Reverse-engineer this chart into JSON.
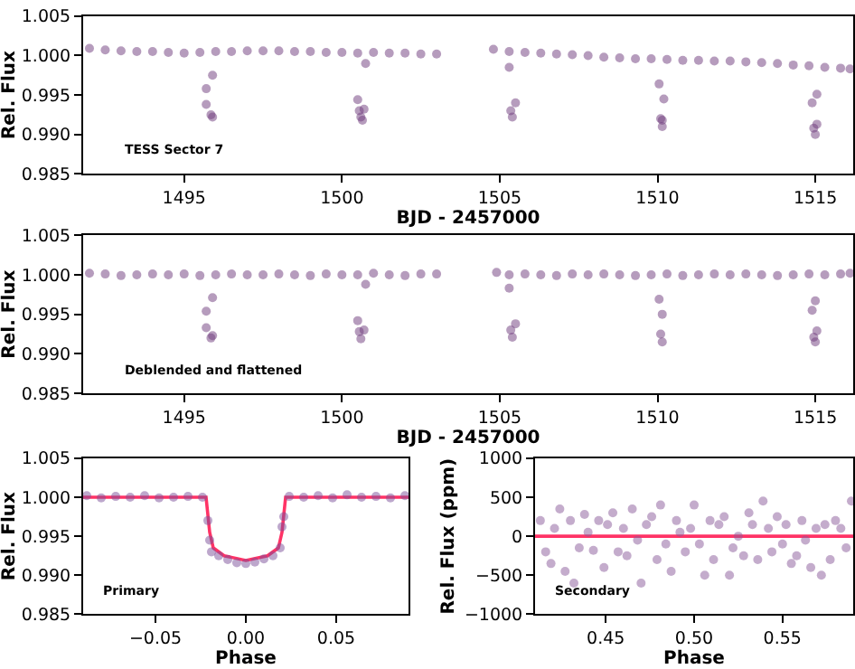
{
  "chart_data": [
    {
      "type": "scatter",
      "xlabel": "BJD - 2457000",
      "ylabel": "Rel. Flux",
      "annotations": [
        "TESS Sector 7"
      ],
      "marker": "circle",
      "xlim": [
        1491.8,
        1516.2
      ],
      "xticks": [
        1495,
        1500,
        1505,
        1510,
        1515
      ],
      "ylim": [
        0.985,
        1.005
      ],
      "yticks": [
        {
          "value": 0.985,
          "label": "0.985"
        },
        {
          "value": 0.99,
          "label": "0.990"
        },
        {
          "value": 0.995,
          "label": "0.995"
        },
        {
          "value": 1.0,
          "label": "1.000"
        },
        {
          "value": 1.005,
          "label": "1.005"
        }
      ],
      "series": [
        {
          "color": "#6e3a7c",
          "x": [
            1492.0,
            1492.5,
            1493.0,
            1493.5,
            1494.0,
            1494.5,
            1495.0,
            1495.5,
            1496.0,
            1496.5,
            1497.0,
            1497.5,
            1498.0,
            1498.5,
            1499.0,
            1499.5,
            1500.0,
            1500.5,
            1501.0,
            1501.5,
            1502.0,
            1502.5,
            1503.0,
            1504.8,
            1505.3,
            1505.8,
            1506.3,
            1506.8,
            1507.3,
            1507.8,
            1508.3,
            1508.8,
            1509.3,
            1509.8,
            1510.3,
            1510.8,
            1511.3,
            1511.8,
            1512.3,
            1512.8,
            1513.3,
            1513.8,
            1514.3,
            1514.8,
            1515.3,
            1515.8,
            1516.1,
            1495.7,
            1495.7,
            1495.9,
            1495.85,
            1495.9,
            1500.5,
            1500.55,
            1500.6,
            1500.65,
            1500.75,
            1500.7,
            1505.3,
            1505.35,
            1505.4,
            1505.5,
            1510.05,
            1510.1,
            1510.15,
            1510.2,
            1510.15,
            1514.9,
            1514.95,
            1515.0,
            1515.05,
            1515.05
          ],
          "values": [
            1.0009,
            1.0007,
            1.0006,
            1.0005,
            1.0005,
            1.0004,
            1.0003,
            1.0004,
            1.0005,
            1.0005,
            1.0006,
            1.0006,
            1.0006,
            1.0005,
            1.0005,
            1.0004,
            1.0004,
            1.0003,
            1.0004,
            1.0003,
            1.0003,
            1.0002,
            1.0002,
            1.0008,
            1.0005,
            1.0004,
            1.0003,
            1.0002,
            1.0001,
            1.0,
            0.9998,
            0.9997,
            0.9996,
            0.9996,
            0.9995,
            0.9994,
            0.9994,
            0.9993,
            0.9993,
            0.9992,
            0.9991,
            0.999,
            0.9988,
            0.9987,
            0.9985,
            0.9984,
            0.9983,
            0.9958,
            0.9938,
            0.9975,
            0.9925,
            0.9922,
            0.9944,
            0.993,
            0.9922,
            0.9918,
            0.999,
            0.9932,
            0.9985,
            0.993,
            0.9922,
            0.994,
            0.9964,
            0.992,
            0.991,
            0.9945,
            0.9918,
            0.994,
            0.9908,
            0.99,
            0.9951,
            0.9913
          ]
        }
      ]
    },
    {
      "type": "scatter",
      "xlabel": "BJD - 2457000",
      "ylabel": "Rel. Flux",
      "annotations": [
        "Deblended and flattened"
      ],
      "marker": "circle",
      "xlim": [
        1491.8,
        1516.2
      ],
      "xticks": [
        1495,
        1500,
        1505,
        1510,
        1515
      ],
      "ylim": [
        0.985,
        1.005
      ],
      "yticks": [
        {
          "value": 0.985,
          "label": "0.985"
        },
        {
          "value": 0.99,
          "label": "0.990"
        },
        {
          "value": 0.995,
          "label": "0.995"
        },
        {
          "value": 1.0,
          "label": "1.000"
        },
        {
          "value": 1.005,
          "label": "1.005"
        }
      ],
      "series": [
        {
          "color": "#6e3a7c",
          "x": [
            1492.0,
            1492.5,
            1493.0,
            1493.5,
            1494.0,
            1494.5,
            1495.0,
            1495.5,
            1496.0,
            1496.5,
            1497.0,
            1497.5,
            1498.0,
            1498.5,
            1499.0,
            1499.5,
            1500.0,
            1500.5,
            1501.0,
            1501.5,
            1502.0,
            1502.5,
            1503.0,
            1504.9,
            1505.3,
            1505.8,
            1506.3,
            1506.8,
            1507.3,
            1507.8,
            1508.3,
            1508.8,
            1509.3,
            1509.8,
            1510.3,
            1510.8,
            1511.3,
            1511.8,
            1512.3,
            1512.8,
            1513.3,
            1513.8,
            1514.3,
            1514.8,
            1515.3,
            1515.8,
            1516.1,
            1495.7,
            1495.7,
            1495.9,
            1495.85,
            1495.9,
            1500.5,
            1500.55,
            1500.6,
            1500.7,
            1500.75,
            1505.3,
            1505.35,
            1505.4,
            1505.5,
            1510.05,
            1510.15,
            1510.1,
            1510.15,
            1514.9,
            1515.0,
            1514.95,
            1515.0,
            1515.05
          ],
          "values": [
            1.0002,
            1.0001,
            0.9999,
            1.0,
            1.0001,
            1.0,
            1.0001,
            0.9999,
            1.0,
            1.0001,
            1.0,
            1.0,
            1.0001,
            1.0,
            0.9999,
            1.0001,
            1.0,
            1.0,
            1.0002,
            1.0,
            0.9999,
            1.0001,
            1.0001,
            1.0003,
            1.0,
            1.0001,
            1.0,
            0.9999,
            1.0001,
            1.0,
            1.0001,
            1.0,
            0.9999,
            1.0,
            1.0001,
            0.9999,
            1.0,
            1.0001,
            1.0,
            1.0001,
            1.0,
            0.9999,
            1.0,
            1.0001,
            1.0,
            1.0001,
            1.0002,
            0.9954,
            0.9933,
            0.9971,
            0.992,
            0.9923,
            0.9942,
            0.9928,
            0.9919,
            0.993,
            0.9988,
            0.9983,
            0.993,
            0.9921,
            0.9938,
            0.9969,
            0.995,
            0.9925,
            0.9915,
            0.9955,
            0.9967,
            0.9921,
            0.9915,
            0.9929
          ]
        }
      ]
    },
    {
      "type": "scatter",
      "xlabel": "Phase",
      "ylabel": "Rel. Flux",
      "annotations": [
        "Primary"
      ],
      "marker": "circle",
      "xlim": [
        -0.09,
        0.09
      ],
      "xticks": [
        {
          "value": -0.05,
          "label": "−0.05"
        },
        {
          "value": 0,
          "label": "0.00"
        },
        {
          "value": 0.05,
          "label": "0.05"
        }
      ],
      "ylim": [
        0.985,
        1.005
      ],
      "yticks": [
        {
          "value": 0.985,
          "label": "0.985"
        },
        {
          "value": 0.99,
          "label": "0.990"
        },
        {
          "value": 0.995,
          "label": "0.995"
        },
        {
          "value": 1.0,
          "label": "1.000"
        },
        {
          "value": 1.005,
          "label": "1.005"
        }
      ],
      "series": [
        {
          "color": "#7b4f99",
          "x": [
            -0.088,
            -0.08,
            -0.072,
            -0.064,
            -0.056,
            -0.048,
            -0.04,
            -0.032,
            -0.024,
            -0.021,
            -0.02,
            -0.019,
            -0.015,
            -0.01,
            -0.005,
            0.0,
            0.005,
            0.01,
            0.015,
            0.019,
            0.02,
            0.021,
            0.024,
            0.032,
            0.04,
            0.048,
            0.056,
            0.064,
            0.072,
            0.08,
            0.088
          ],
          "values": [
            1.0002,
            0.9999,
            1.0001,
            1.0,
            1.0002,
            0.9999,
            1.0,
            1.0001,
            1.0,
            0.997,
            0.9945,
            0.993,
            0.9925,
            0.992,
            0.9916,
            0.9915,
            0.9917,
            0.9921,
            0.9925,
            0.9935,
            0.9962,
            0.9975,
            1.0001,
            1.0,
            1.0002,
            0.9999,
            1.0003,
            1.0,
            1.0001,
            0.9999,
            1.0002
          ]
        },
        {
          "type": "line",
          "color": "#ff3366",
          "marker": "none",
          "x": [
            -0.09,
            -0.022,
            -0.02,
            -0.018,
            -0.012,
            0.0,
            0.012,
            0.018,
            0.02,
            0.022,
            0.09
          ],
          "values": [
            1.0,
            1.0,
            0.9955,
            0.9935,
            0.9925,
            0.9919,
            0.9925,
            0.9935,
            0.9955,
            1.0,
            1.0
          ]
        }
      ]
    },
    {
      "type": "scatter",
      "xlabel": "Phase",
      "ylabel": "Rel. Flux (ppm)",
      "annotations": [
        "Secondary"
      ],
      "marker": "circle",
      "xlim": [
        0.41,
        0.59
      ],
      "xticks": [
        {
          "value": 0.45,
          "label": "0.45"
        },
        {
          "value": 0.5,
          "label": "0.50"
        },
        {
          "value": 0.55,
          "label": "0.55"
        }
      ],
      "ylim": [
        -1000,
        1000
      ],
      "yticks": [
        {
          "value": -1000,
          "label": "−1000"
        },
        {
          "value": -500,
          "label": "−500"
        },
        0,
        500,
        1000
      ],
      "series": [
        {
          "color": "#8a5a9a",
          "x": [
            0.413,
            0.416,
            0.419,
            0.421,
            0.424,
            0.427,
            0.43,
            0.432,
            0.435,
            0.438,
            0.44,
            0.443,
            0.446,
            0.449,
            0.451,
            0.454,
            0.457,
            0.46,
            0.462,
            0.465,
            0.468,
            0.47,
            0.473,
            0.476,
            0.479,
            0.481,
            0.484,
            0.487,
            0.49,
            0.492,
            0.495,
            0.498,
            0.5,
            0.503,
            0.506,
            0.509,
            0.511,
            0.514,
            0.517,
            0.52,
            0.522,
            0.525,
            0.528,
            0.531,
            0.533,
            0.536,
            0.539,
            0.542,
            0.544,
            0.547,
            0.55,
            0.552,
            0.555,
            0.558,
            0.561,
            0.563,
            0.566,
            0.569,
            0.572,
            0.574,
            0.577,
            0.58,
            0.583,
            0.586,
            0.589
          ],
          "values": [
            200,
            -200,
            -350,
            100,
            350,
            -450,
            200,
            -600,
            -150,
            280,
            50,
            -180,
            200,
            -400,
            150,
            300,
            -200,
            100,
            -250,
            350,
            -50,
            -600,
            150,
            250,
            -300,
            400,
            -100,
            -450,
            200,
            50,
            -200,
            100,
            400,
            -100,
            -500,
            200,
            -300,
            150,
            250,
            -500,
            -150,
            0,
            -250,
            300,
            150,
            -300,
            450,
            100,
            -200,
            250,
            -100,
            150,
            -350,
            -250,
            200,
            -50,
            -400,
            100,
            -500,
            150,
            -300,
            200,
            100,
            -150,
            450
          ]
        },
        {
          "type": "line",
          "color": "#ff3366",
          "marker": "none",
          "x": [
            0.41,
            0.59
          ],
          "values": [
            0,
            0
          ]
        }
      ]
    }
  ]
}
